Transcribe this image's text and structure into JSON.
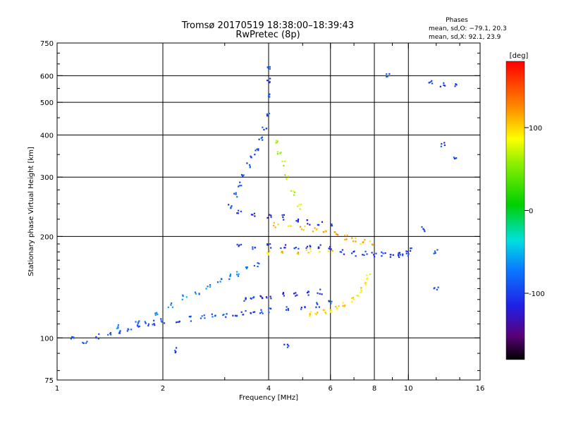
{
  "header": {
    "title_line1": "Tromsø 20170519 18:38:00–18:39:43",
    "title_line2": "RwPretec (8p)"
  },
  "stats": {
    "heading": "Phases",
    "line_O": "mean, sd,O: −79.1, 20.3",
    "line_X": "mean, sd,X:  92.1, 23.9"
  },
  "chart_data": {
    "type": "scatter",
    "xlabel": "Frequency [MHz]",
    "ylabel": "Stationary phase Virtual Height [km]",
    "xscale": "log",
    "yscale": "log",
    "xlim": [
      1,
      16
    ],
    "ylim": [
      75,
      750
    ],
    "x_ticks": [
      1,
      2,
      4,
      6,
      8,
      10,
      16
    ],
    "x_tick_labels": [
      "1",
      "2",
      "4",
      "6",
      "8",
      "10",
      "16"
    ],
    "y_ticks": [
      75,
      100,
      200,
      300,
      400,
      500,
      600,
      750
    ],
    "y_tick_labels": [
      "75",
      "100",
      "200",
      "300",
      "400",
      "500",
      "600",
      "750"
    ],
    "grid": true,
    "colorbar": {
      "label": "[deg]",
      "range": [
        -180,
        180
      ],
      "ticks": [
        100,
        0,
        -100
      ],
      "tick_labels": [
        "100",
        "0",
        "-100"
      ]
    },
    "traces": [
      {
        "name": "",
        "phase": -95,
        "points": [
          [
            1.0,
            100
          ],
          [
            1.1,
            100
          ],
          [
            1.2,
            98
          ],
          [
            1.3,
            101
          ],
          [
            1.4,
            103
          ],
          [
            1.5,
            105
          ],
          [
            1.6,
            106
          ],
          [
            1.7,
            108
          ],
          [
            1.8,
            110
          ],
          [
            1.9,
            111
          ],
          [
            2.0,
            112
          ],
          [
            2.2,
            113
          ],
          [
            2.4,
            114
          ],
          [
            2.6,
            115
          ],
          [
            2.8,
            116
          ],
          [
            3.0,
            117
          ],
          [
            3.2,
            118
          ],
          [
            3.4,
            119
          ],
          [
            3.6,
            120
          ],
          [
            3.8,
            120
          ],
          [
            4.0,
            121
          ],
          [
            4.5,
            122
          ],
          [
            5.0,
            123
          ],
          [
            5.5,
            125
          ],
          [
            6.0,
            127
          ]
        ]
      },
      {
        "name": "",
        "phase": -110,
        "points": [
          [
            3.4,
            130
          ],
          [
            3.6,
            132
          ],
          [
            3.8,
            133
          ],
          [
            4.0,
            133
          ],
          [
            4.4,
            134
          ],
          [
            4.8,
            135
          ],
          [
            5.2,
            136
          ],
          [
            5.6,
            137
          ]
        ]
      },
      {
        "name": "",
        "phase": 95,
        "points": [
          [
            5.2,
            118
          ],
          [
            5.5,
            119
          ],
          [
            5.8,
            120
          ],
          [
            6.0,
            121
          ],
          [
            6.3,
            123
          ],
          [
            6.6,
            126
          ],
          [
            6.9,
            130
          ],
          [
            7.2,
            135
          ],
          [
            7.4,
            140
          ],
          [
            7.6,
            146
          ],
          [
            7.7,
            152
          ]
        ]
      },
      {
        "name": "",
        "phase": 100,
        "points": [
          [
            4.0,
            178
          ],
          [
            4.4,
            178
          ],
          [
            4.8,
            180
          ],
          [
            5.2,
            182
          ],
          [
            5.6,
            183
          ],
          [
            6.0,
            183
          ]
        ]
      },
      {
        "name": "",
        "phase": -105,
        "points": [
          [
            3.3,
            187
          ],
          [
            3.6,
            186
          ],
          [
            4.0,
            187
          ],
          [
            4.4,
            186
          ],
          [
            4.8,
            186
          ],
          [
            5.2,
            185
          ],
          [
            5.6,
            186
          ],
          [
            6.0,
            186
          ],
          [
            6.5,
            180
          ],
          [
            7.0,
            178
          ],
          [
            7.5,
            178
          ],
          [
            8.0,
            177
          ],
          [
            8.5,
            177
          ],
          [
            9.0,
            176
          ],
          [
            9.5,
            176
          ]
        ]
      },
      {
        "name": "",
        "phase": 110,
        "points": [
          [
            4.2,
            216
          ],
          [
            4.6,
            214
          ],
          [
            5.0,
            212
          ],
          [
            5.4,
            209
          ],
          [
            5.8,
            206
          ],
          [
            6.2,
            203
          ],
          [
            6.6,
            199
          ],
          [
            7.0,
            196
          ],
          [
            7.4,
            193
          ],
          [
            7.8,
            191
          ]
        ]
      },
      {
        "name": "",
        "phase": -95,
        "points": [
          [
            3.1,
            245
          ],
          [
            3.2,
            265
          ],
          [
            3.3,
            285
          ],
          [
            3.4,
            305
          ],
          [
            3.5,
            325
          ],
          [
            3.6,
            345
          ],
          [
            3.7,
            365
          ],
          [
            3.8,
            390
          ],
          [
            3.9,
            420
          ],
          [
            4.0,
            460
          ],
          [
            4.0,
            520
          ],
          [
            4.0,
            580
          ],
          [
            4.0,
            630
          ]
        ]
      },
      {
        "name": "",
        "phase": -70,
        "points": [
          [
            1.5,
            108
          ],
          [
            1.7,
            112
          ],
          [
            1.9,
            118
          ],
          [
            2.1,
            125
          ],
          [
            2.3,
            132
          ],
          [
            2.5,
            137
          ],
          [
            2.7,
            142
          ],
          [
            2.9,
            148
          ],
          [
            3.1,
            152
          ],
          [
            3.3,
            155
          ],
          [
            3.5,
            160
          ],
          [
            3.7,
            165
          ]
        ]
      },
      {
        "name": "",
        "phase": 70,
        "points": [
          [
            4.2,
            380
          ],
          [
            4.3,
            355
          ],
          [
            4.4,
            330
          ],
          [
            4.5,
            300
          ],
          [
            4.7,
            270
          ],
          [
            4.9,
            245
          ]
        ]
      },
      {
        "name": "",
        "phase": -110,
        "points": [
          [
            3.3,
            235
          ],
          [
            3.6,
            232
          ],
          [
            4.0,
            230
          ],
          [
            4.4,
            228
          ],
          [
            4.8,
            224
          ],
          [
            5.2,
            220
          ],
          [
            5.6,
            218
          ],
          [
            6.0,
            215
          ]
        ]
      },
      {
        "name": "",
        "phase": -100,
        "points": [
          [
            8.8,
            605
          ],
          [
            11.5,
            570
          ],
          [
            12.5,
            565
          ],
          [
            13.5,
            560
          ],
          [
            12.5,
            375
          ],
          [
            13.5,
            345
          ],
          [
            11.0,
            210
          ],
          [
            12.0,
            180
          ],
          [
            12.0,
            140
          ],
          [
            9.5,
            177
          ],
          [
            10.0,
            178
          ],
          [
            10.1,
            182
          ],
          [
            2.2,
            92
          ],
          [
            4.5,
            95
          ]
        ]
      }
    ]
  }
}
